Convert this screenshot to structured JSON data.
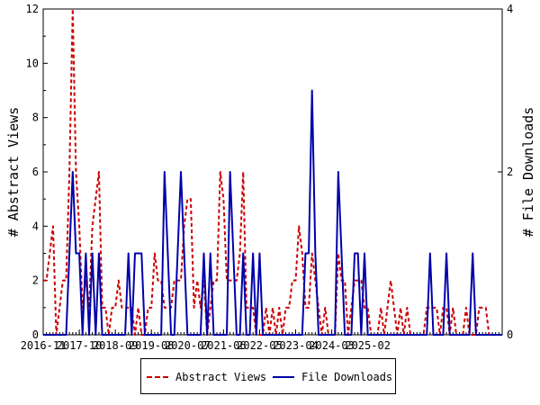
{
  "chart_data": {
    "type": "line",
    "title": "",
    "ylabel_left": "# Abstract Views",
    "ylabel_right": "# File Downloads",
    "ylim_left": [
      0,
      12
    ],
    "ylim_right": [
      0,
      4
    ],
    "yticks_left": [
      "0",
      "2",
      "4",
      "6",
      "8",
      "10",
      "12"
    ],
    "yticks_right": [
      "0",
      "2",
      "4"
    ],
    "xticks": [
      "2016-11",
      "2017-10",
      "2018-09",
      "2019-08",
      "2020-07",
      "2021-06",
      "2022-05",
      "2023-04",
      "2024-03",
      "2025-02"
    ],
    "x_start": "2016-11",
    "grid": false,
    "legend_position": "bottom",
    "series": [
      {
        "name": "Abstract Views",
        "axis": "left",
        "color": "#cc0000",
        "style": "dashed",
        "values": [
          2,
          2,
          3,
          4,
          0,
          1,
          2,
          2,
          6,
          12,
          6,
          4,
          1,
          2,
          1,
          4,
          5,
          6,
          1,
          1,
          0,
          1,
          1,
          2,
          1,
          1,
          1,
          1,
          0,
          1,
          0,
          0,
          1,
          1,
          3,
          2,
          2,
          1,
          1,
          1,
          2,
          2,
          2,
          4,
          5,
          5,
          1,
          2,
          1,
          2,
          0,
          1,
          2,
          2,
          6,
          5,
          2,
          2,
          2,
          2,
          3,
          6,
          1,
          1,
          1,
          0,
          0,
          0,
          1,
          0,
          1,
          0,
          1,
          0,
          1,
          1,
          2,
          2,
          4,
          3,
          1,
          1,
          3,
          2,
          1,
          0,
          1,
          0,
          0,
          0,
          3,
          2,
          2,
          0,
          1,
          2,
          2,
          2,
          1,
          1,
          0,
          0,
          0,
          1,
          0,
          1,
          2,
          1,
          0,
          1,
          0,
          1,
          0,
          0,
          0,
          0,
          0,
          1,
          1,
          1,
          1,
          0,
          1,
          1,
          0,
          1,
          0,
          0,
          0,
          1,
          0,
          0,
          0,
          1,
          1,
          1,
          0,
          0,
          0,
          0,
          0
        ]
      },
      {
        "name": "File Downloads",
        "axis": "right",
        "color": "#0000aa",
        "style": "solid",
        "values": [
          0,
          0,
          0,
          0,
          0,
          0,
          0,
          0,
          1,
          2,
          1,
          1,
          0,
          1,
          0,
          1,
          0,
          1,
          0,
          0,
          0,
          0,
          0,
          0,
          0,
          0,
          1,
          0,
          1,
          1,
          1,
          0,
          0,
          0,
          0,
          0,
          0,
          2,
          1,
          0,
          0,
          1,
          2,
          1,
          0,
          0,
          0,
          0,
          0,
          1,
          0,
          1,
          0,
          0,
          0,
          0,
          0,
          2,
          1,
          0,
          0,
          1,
          0,
          0,
          1,
          0,
          1,
          0,
          0,
          0,
          0,
          0,
          0,
          0,
          0,
          0,
          0,
          0,
          0,
          0,
          1,
          1,
          3,
          1,
          0,
          0,
          0,
          0,
          0,
          0,
          2,
          1,
          0,
          0,
          0,
          1,
          1,
          0,
          1,
          0,
          0,
          0,
          0,
          0,
          0,
          0,
          0,
          0,
          0,
          0,
          0,
          0,
          0,
          0,
          0,
          0,
          0,
          0,
          1,
          0,
          0,
          0,
          0,
          1,
          0,
          0,
          0,
          0,
          0,
          0,
          0,
          1,
          0,
          0,
          0,
          0,
          0,
          0,
          0,
          0,
          0
        ]
      }
    ]
  }
}
